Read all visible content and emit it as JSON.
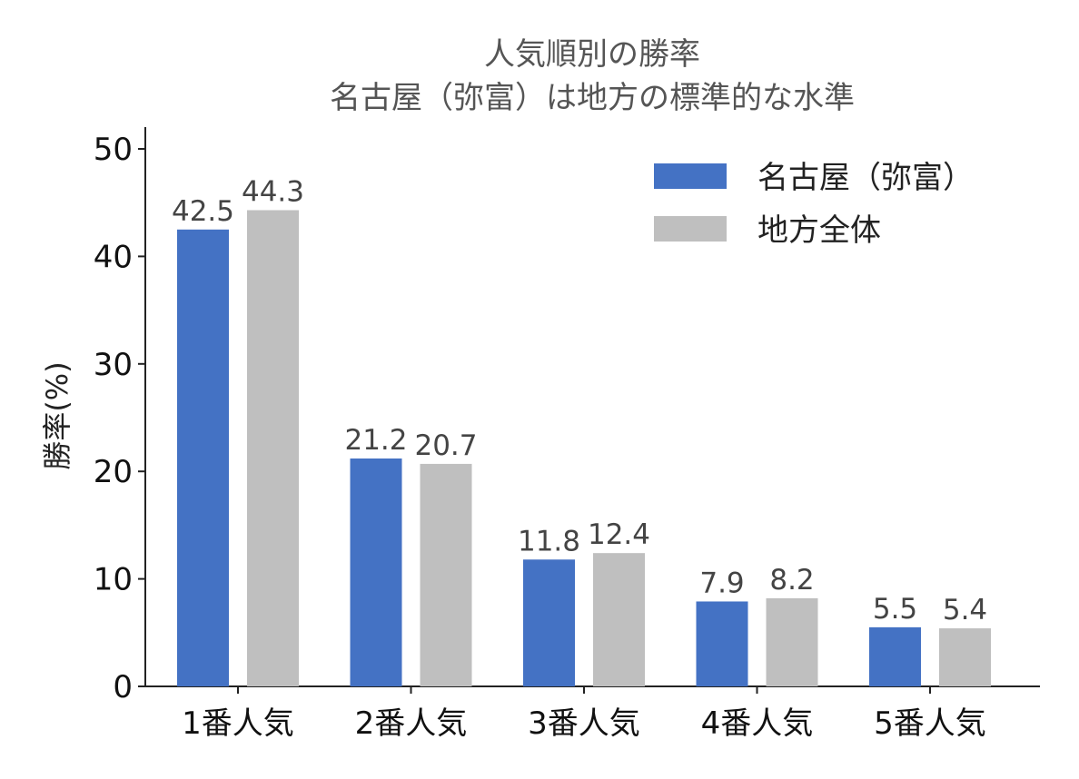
{
  "chart_data": {
    "type": "bar",
    "title": "人気順別の勝率",
    "subtitle": "名古屋（弥富）は地方の標準的な水準",
    "xlabel": "",
    "ylabel": "勝率(%)",
    "ylim": [
      0,
      52
    ],
    "yticks": [
      0,
      10,
      20,
      30,
      40,
      50
    ],
    "categories": [
      "1番人気",
      "2番人気",
      "3番人気",
      "4番人気",
      "5番人気"
    ],
    "series": [
      {
        "name": "名古屋（弥富）",
        "color": "#4472C4",
        "values": [
          42.5,
          21.2,
          11.8,
          7.9,
          5.5
        ]
      },
      {
        "name": "地方全体",
        "color": "#BFBFBF",
        "values": [
          44.3,
          20.7,
          12.4,
          8.2,
          5.4
        ]
      }
    ],
    "legend_position": "top-right",
    "grid": false
  }
}
